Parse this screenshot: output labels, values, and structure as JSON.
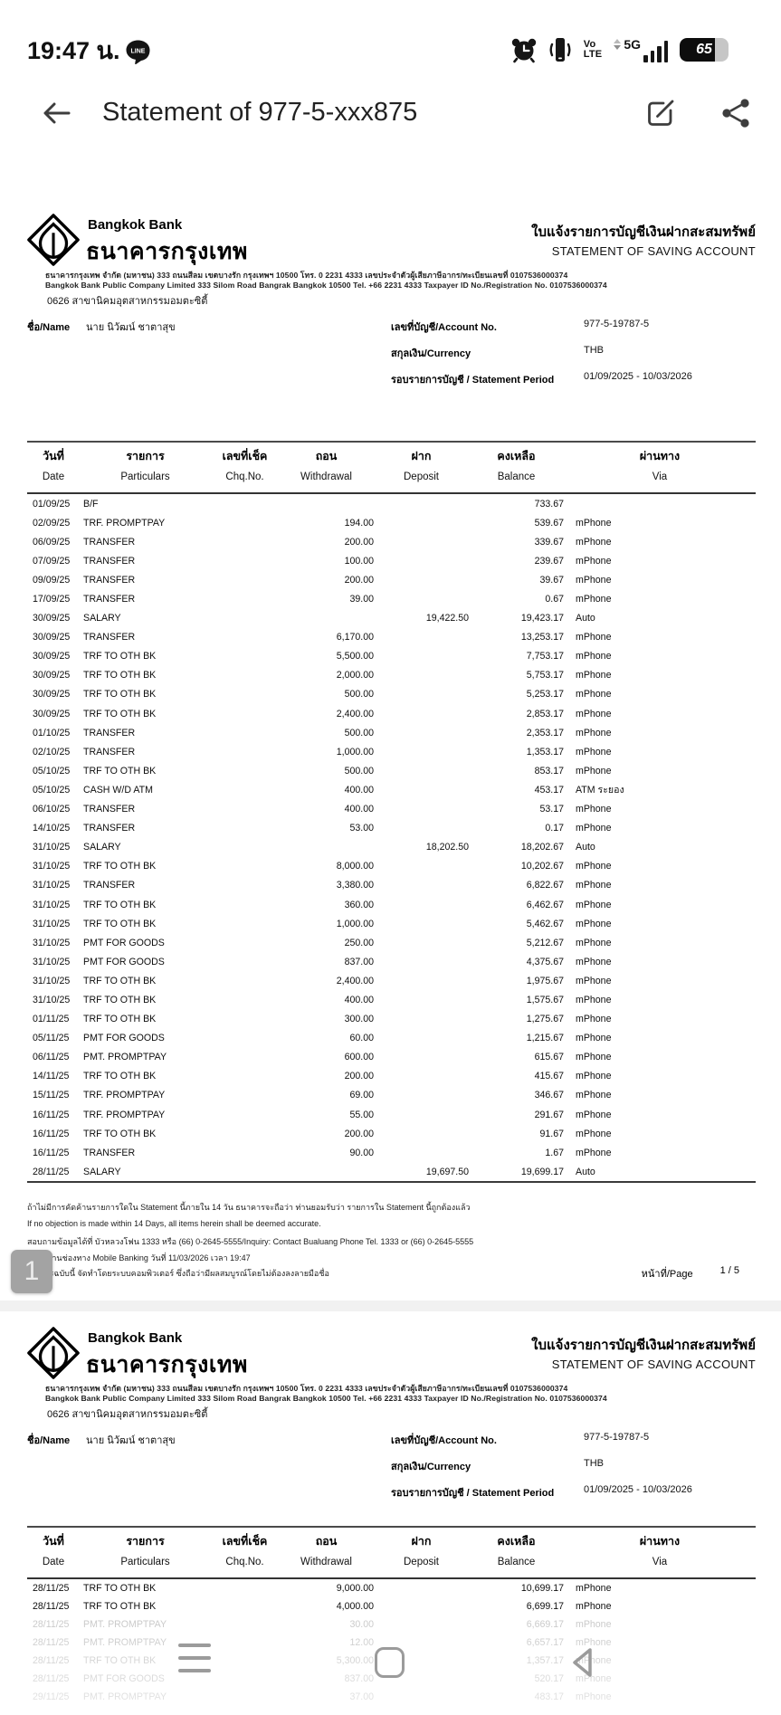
{
  "status_bar": {
    "time": "19:47 น.",
    "notification_icon": "line-app",
    "volte_line1": "Vo",
    "volte_line2": "LTE",
    "network": "5G",
    "battery_level": "65",
    "icons": [
      "alarm-icon",
      "vibrate-icon",
      "volte-indicator",
      "5g-signal",
      "battery"
    ]
  },
  "app_header": {
    "title": "Statement of 977-5-xxx875",
    "actions": [
      "back",
      "edit",
      "share"
    ]
  },
  "document": {
    "bank": {
      "name_en": "Bangkok Bank",
      "name_th": "ธนาคารกรุงเทพ",
      "doc_title_th": "ใบแจ้งรายการบัญชีเงินฝากสะสมทรัพย์",
      "doc_title_en": "STATEMENT OF SAVING ACCOUNT",
      "address_th": "ธนาคารกรุงเทพ จำกัด (มหาชน) 333 ถนนสีลม เขตบางรัก กรุงเทพฯ 10500 โทร. 0 2231 4333 เลขประจำตัวผู้เสียภาษีอากร/ทะเบียนเลขที่ 0107536000374",
      "address_en": "Bangkok Bank Public Company Limited 333 Silom Road Bangrak Bangkok 10500 Tel. +66 2231 4333 Taxpayer ID No./Registration No. 0107536000374",
      "branch": "0626 สาขานิคมอุตสาหกรรมอมตะซิตี้"
    },
    "account": {
      "name_label": "ชื่อ/Name",
      "name": "นาย นิวัฒน์ ชาตาสุข",
      "account_no_label": "เลขที่บัญชี/Account No.",
      "account_no": "977-5-19787-5",
      "currency_label": "สกุลเงิน/Currency",
      "currency": "THB",
      "period_label": "รอบรายการบัญชี / Statement Period",
      "period": "01/09/2025 - 10/03/2026"
    },
    "table": {
      "headers": [
        {
          "th": "วันที่",
          "en": "Date"
        },
        {
          "th": "รายการ",
          "en": "Particulars"
        },
        {
          "th": "เลขที่เช็ค",
          "en": "Chq.No."
        },
        {
          "th": "ถอน",
          "en": "Withdrawal"
        },
        {
          "th": "ฝาก",
          "en": "Deposit"
        },
        {
          "th": "คงเหลือ",
          "en": "Balance"
        },
        {
          "th": "ผ่านทาง",
          "en": "Via"
        }
      ],
      "page1_rows": [
        [
          "01/09/25",
          "B/F",
          "",
          "",
          "",
          "733.67",
          ""
        ],
        [
          "02/09/25",
          "TRF. PROMPTPAY",
          "",
          "194.00",
          "",
          "539.67",
          "mPhone"
        ],
        [
          "06/09/25",
          "TRANSFER",
          "",
          "200.00",
          "",
          "339.67",
          "mPhone"
        ],
        [
          "07/09/25",
          "TRANSFER",
          "",
          "100.00",
          "",
          "239.67",
          "mPhone"
        ],
        [
          "09/09/25",
          "TRANSFER",
          "",
          "200.00",
          "",
          "39.67",
          "mPhone"
        ],
        [
          "17/09/25",
          "TRANSFER",
          "",
          "39.00",
          "",
          "0.67",
          "mPhone"
        ],
        [
          "30/09/25",
          "SALARY",
          "",
          "",
          "19,422.50",
          "19,423.17",
          "Auto"
        ],
        [
          "30/09/25",
          "TRANSFER",
          "",
          "6,170.00",
          "",
          "13,253.17",
          "mPhone"
        ],
        [
          "30/09/25",
          "TRF TO OTH BK",
          "",
          "5,500.00",
          "",
          "7,753.17",
          "mPhone"
        ],
        [
          "30/09/25",
          "TRF TO OTH BK",
          "",
          "2,000.00",
          "",
          "5,753.17",
          "mPhone"
        ],
        [
          "30/09/25",
          "TRF TO OTH BK",
          "",
          "500.00",
          "",
          "5,253.17",
          "mPhone"
        ],
        [
          "30/09/25",
          "TRF TO OTH BK",
          "",
          "2,400.00",
          "",
          "2,853.17",
          "mPhone"
        ],
        [
          "01/10/25",
          "TRANSFER",
          "",
          "500.00",
          "",
          "2,353.17",
          "mPhone"
        ],
        [
          "02/10/25",
          "TRANSFER",
          "",
          "1,000.00",
          "",
          "1,353.17",
          "mPhone"
        ],
        [
          "05/10/25",
          "TRF TO OTH BK",
          "",
          "500.00",
          "",
          "853.17",
          "mPhone"
        ],
        [
          "05/10/25",
          "CASH W/D ATM",
          "",
          "400.00",
          "",
          "453.17",
          "ATM ระยอง"
        ],
        [
          "06/10/25",
          "TRANSFER",
          "",
          "400.00",
          "",
          "53.17",
          "mPhone"
        ],
        [
          "14/10/25",
          "TRANSFER",
          "",
          "53.00",
          "",
          "0.17",
          "mPhone"
        ],
        [
          "31/10/25",
          "SALARY",
          "",
          "",
          "18,202.50",
          "18,202.67",
          "Auto"
        ],
        [
          "31/10/25",
          "TRF TO OTH BK",
          "",
          "8,000.00",
          "",
          "10,202.67",
          "mPhone"
        ],
        [
          "31/10/25",
          "TRANSFER",
          "",
          "3,380.00",
          "",
          "6,822.67",
          "mPhone"
        ],
        [
          "31/10/25",
          "TRF TO OTH BK",
          "",
          "360.00",
          "",
          "6,462.67",
          "mPhone"
        ],
        [
          "31/10/25",
          "TRF TO OTH BK",
          "",
          "1,000.00",
          "",
          "5,462.67",
          "mPhone"
        ],
        [
          "31/10/25",
          "PMT FOR GOODS",
          "",
          "250.00",
          "",
          "5,212.67",
          "mPhone"
        ],
        [
          "31/10/25",
          "PMT FOR GOODS",
          "",
          "837.00",
          "",
          "4,375.67",
          "mPhone"
        ],
        [
          "31/10/25",
          "TRF TO OTH BK",
          "",
          "2,400.00",
          "",
          "1,975.67",
          "mPhone"
        ],
        [
          "31/10/25",
          "TRF TO OTH BK",
          "",
          "400.00",
          "",
          "1,575.67",
          "mPhone"
        ],
        [
          "01/11/25",
          "TRF TO OTH BK",
          "",
          "300.00",
          "",
          "1,275.67",
          "mPhone"
        ],
        [
          "05/11/25",
          "PMT FOR GOODS",
          "",
          "60.00",
          "",
          "1,215.67",
          "mPhone"
        ],
        [
          "06/11/25",
          "PMT. PROMPTPAY",
          "",
          "600.00",
          "",
          "615.67",
          "mPhone"
        ],
        [
          "14/11/25",
          "TRF TO OTH BK",
          "",
          "200.00",
          "",
          "415.67",
          "mPhone"
        ],
        [
          "15/11/25",
          "TRF. PROMPTPAY",
          "",
          "69.00",
          "",
          "346.67",
          "mPhone"
        ],
        [
          "16/11/25",
          "TRF. PROMPTPAY",
          "",
          "55.00",
          "",
          "291.67",
          "mPhone"
        ],
        [
          "16/11/25",
          "TRF TO OTH BK",
          "",
          "200.00",
          "",
          "91.67",
          "mPhone"
        ],
        [
          "16/11/25",
          "TRANSFER",
          "",
          "90.00",
          "",
          "1.67",
          "mPhone"
        ],
        [
          "28/11/25",
          "SALARY",
          "",
          "",
          "19,697.50",
          "19,699.17",
          "Auto"
        ]
      ],
      "page2_rows": [
        [
          "28/11/25",
          "TRF TO OTH BK",
          "",
          "9,000.00",
          "",
          "10,699.17",
          "mPhone"
        ],
        [
          "28/11/25",
          "TRF TO OTH BK",
          "",
          "4,000.00",
          "",
          "6,699.17",
          "mPhone"
        ],
        [
          "28/11/25",
          "PMT. PROMPTPAY",
          "",
          "30.00",
          "",
          "6,669.17",
          "mPhone"
        ],
        [
          "28/11/25",
          "PMT. PROMPTPAY",
          "",
          "12.00",
          "",
          "6,657.17",
          "mPhone"
        ],
        [
          "28/11/25",
          "TRF TO OTH BK",
          "",
          "5,300.00",
          "",
          "1,357.17",
          "mPhone"
        ],
        [
          "28/11/25",
          "PMT FOR GOODS",
          "",
          "837.00",
          "",
          "520.17",
          "mPhone"
        ],
        [
          "29/11/25",
          "PMT. PROMPTPAY",
          "",
          "37.00",
          "",
          "483.17",
          "mPhone"
        ]
      ],
      "page2_fade_from": 2
    },
    "footer": {
      "line1": "ถ้าไม่มีการคัดค้านรายการใดใน Statement นี้ภายใน 14 วัน ธนาคารจะถือว่า ท่านยอมรับว่า รายการใน Statement นี้ถูกต้องแล้ว",
      "line2": "If no objection is made within 14 Days, all items herein shall be deemed accurate.",
      "line3": "สอบถามข้อมูลได้ที่ บัวหลวงโฟน 1333 หรือ (66) 0-2645-5555/Inquiry: Contact Bualuang Phone Tel. 1333 or (66) 0-2645-5555",
      "line4": "จัดทำผ่านช่องทาง Mobile Banking วันที่ 11/03/2026 เวลา 19:47",
      "line5": "เอกสารฉบับนี้ จัดทำโดยระบบคอมพิวเตอร์ ซึ่งถือว่ามีผลสมบูรณ์โดยไม่ต้องลงลายมือชื่อ",
      "page_label": "หน้าที่/Page",
      "page_value": "1 / 5"
    },
    "page_indicator": "1"
  },
  "nav_bar": {
    "items": [
      "recents",
      "home",
      "back"
    ]
  },
  "colors": {
    "text": "#1a1a1a",
    "faded_row": "#c9c9c9",
    "nav_icon": "#9b9b9b",
    "divider": "#f1f1f1",
    "thumb": "#a3a3a3"
  }
}
